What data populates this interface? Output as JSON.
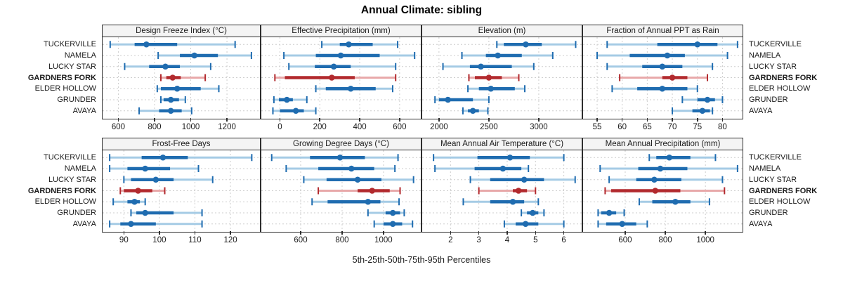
{
  "title": "Annual Climate: sibling",
  "caption": "5th-25th-50th-75th-95th Percentiles",
  "sites": [
    "TUCKERVILLE",
    "NAMELA",
    "LUCKY STAR",
    "GARDNERS FORK",
    "ELDER HOLLOW",
    "GRUNDER",
    "AVAYA"
  ],
  "highlight_site": "GARDNERS FORK",
  "colors": {
    "series_dark": "#1F6CB0",
    "series_light": "#A5CBE5",
    "highlight_dark": "#B22A2E",
    "highlight_light": "#E8A9AA",
    "grid": "#CDCDCD",
    "border": "#2E2E2E",
    "header_bg": "#F4F4F4",
    "text": "#1A1A1A"
  },
  "chart_data": {
    "type": "dotplot-intervals",
    "legend_note": "each row shows 5th-25th-50th-75th-95th percentile interval; median as filled dot",
    "percentiles": [
      5,
      25,
      50,
      75,
      95
    ],
    "grid": "dashed",
    "panels": [
      {
        "title": "Design Freeze Index (°C)",
        "ticks": [
          600,
          800,
          1000,
          1200
        ],
        "xlim": [
          513,
          1382
        ],
        "values": [
          [
            555,
            690,
            755,
            925,
            1245
          ],
          [
            820,
            940,
            1020,
            1150,
            1335
          ],
          [
            635,
            770,
            860,
            940,
            1110
          ],
          [
            835,
            865,
            900,
            945,
            1080
          ],
          [
            815,
            835,
            925,
            1055,
            1155
          ],
          [
            835,
            850,
            890,
            935,
            970
          ],
          [
            715,
            825,
            890,
            950,
            1005
          ]
        ]
      },
      {
        "title": "Effective Precipitation (mm)",
        "ticks": [
          0,
          200,
          400,
          600
        ],
        "xlim": [
          -93,
          706
        ],
        "values": [
          [
            210,
            300,
            345,
            465,
            590
          ],
          [
            20,
            180,
            305,
            500,
            675
          ],
          [
            45,
            175,
            270,
            355,
            580
          ],
          [
            -25,
            25,
            260,
            375,
            580
          ],
          [
            180,
            230,
            355,
            480,
            565
          ],
          [
            -30,
            -5,
            35,
            65,
            135
          ],
          [
            -35,
            0,
            80,
            120,
            180
          ]
        ]
      },
      {
        "title": "Elevation (m)",
        "ticks": [
          2000,
          2500,
          3000
        ],
        "xlim": [
          1832,
          3430
        ],
        "values": [
          [
            2580,
            2650,
            2870,
            3030,
            3370
          ],
          [
            2230,
            2470,
            2590,
            2830,
            3140
          ],
          [
            2040,
            2310,
            2420,
            2730,
            2950
          ],
          [
            2300,
            2360,
            2500,
            2630,
            2800
          ],
          [
            2290,
            2400,
            2520,
            2760,
            2860
          ],
          [
            1960,
            2000,
            2090,
            2340,
            2500
          ],
          [
            2240,
            2290,
            2340,
            2400,
            2490
          ]
        ]
      },
      {
        "title": "Fraction of Annual PPT as Rain",
        "ticks": [
          55,
          60,
          65,
          70,
          75,
          80
        ],
        "xlim": [
          52.2,
          84
        ],
        "values": [
          [
            57,
            67,
            75,
            79,
            83
          ],
          [
            55,
            61.5,
            69,
            72.5,
            81
          ],
          [
            57,
            64,
            68,
            72,
            78
          ],
          [
            59.5,
            68,
            70,
            73,
            77
          ],
          [
            58,
            63,
            68,
            73,
            75
          ],
          [
            72,
            75,
            77,
            78.5,
            80
          ],
          [
            70,
            74,
            76,
            77.5,
            78
          ]
        ]
      },
      {
        "title": "Frost-Free Days",
        "ticks": [
          90,
          100,
          110,
          120
        ],
        "xlim": [
          84,
          128.3
        ],
        "values": [
          [
            86,
            95,
            101,
            108,
            126
          ],
          [
            86,
            91,
            96,
            103,
            111
          ],
          [
            90,
            92,
            99,
            104,
            115
          ],
          [
            89,
            90,
            94,
            98,
            101.5
          ],
          [
            87,
            91,
            93,
            94.5,
            96
          ],
          [
            92,
            93.5,
            96,
            104,
            112
          ],
          [
            86,
            89,
            92,
            99,
            112
          ]
        ]
      },
      {
        "title": "Growing Degree Days (°C)",
        "ticks": [
          600,
          800,
          1000
        ],
        "xlim": [
          410,
          1180
        ],
        "values": [
          [
            460,
            645,
            790,
            910,
            1070
          ],
          [
            530,
            685,
            845,
            955,
            1055
          ],
          [
            615,
            725,
            875,
            990,
            1145
          ],
          [
            685,
            875,
            945,
            1030,
            1080
          ],
          [
            655,
            730,
            925,
            985,
            1075
          ],
          [
            925,
            1010,
            1045,
            1080,
            1100
          ],
          [
            955,
            1000,
            1045,
            1090,
            1140
          ]
        ]
      },
      {
        "title": "Mean Annual Air Temperature (°C)",
        "ticks": [
          2,
          3,
          4,
          5,
          6
        ],
        "xlim": [
          1.0,
          6.63
        ],
        "values": [
          [
            1.4,
            2.95,
            4.1,
            4.8,
            6.0
          ],
          [
            1.45,
            2.85,
            3.85,
            4.5,
            4.75
          ],
          [
            2.7,
            3.4,
            4.6,
            5.3,
            6.4
          ],
          [
            3.0,
            4.2,
            4.4,
            4.7,
            5.0
          ],
          [
            2.45,
            3.4,
            4.2,
            4.6,
            5.1
          ],
          [
            4.5,
            4.7,
            4.9,
            5.1,
            5.3
          ],
          [
            3.9,
            4.3,
            4.65,
            5.1,
            6.0
          ]
        ]
      },
      {
        "title": "Mean Annual Precipitation (mm)",
        "ticks": [
          600,
          800,
          1000
        ],
        "xlim": [
          390,
          1185
        ],
        "values": [
          [
            720,
            755,
            820,
            925,
            1050
          ],
          [
            475,
            665,
            775,
            910,
            1160
          ],
          [
            520,
            655,
            745,
            880,
            1085
          ],
          [
            500,
            530,
            750,
            875,
            1095
          ],
          [
            670,
            735,
            850,
            925,
            1020
          ],
          [
            465,
            480,
            520,
            555,
            595
          ],
          [
            465,
            505,
            585,
            655,
            710
          ]
        ]
      }
    ]
  }
}
